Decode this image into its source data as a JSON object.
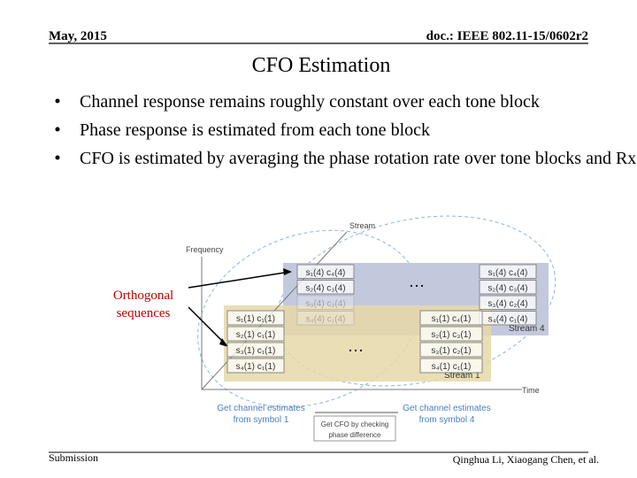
{
  "header": {
    "date": "May, 2015",
    "doc_id": "doc.: IEEE 802.11-15/0602r2"
  },
  "title": "CFO Estimation",
  "bullets": [
    "Channel response remains roughly constant over each tone block",
    "Phase response is estimated from each tone block",
    "CFO is estimated by averaging the phase rotation rate over tone blocks and Rx antennas"
  ],
  "figure": {
    "axis_frequency": "Frequency",
    "axis_stream": "Stream",
    "axis_time": "Time",
    "stream4_label": "Stream 4",
    "stream1_label": "Stream 1",
    "stream4_left": [
      "s₁(4) c₄(4)",
      "s₂(4) c₃(4)",
      "s₃(4) c₂(4)",
      "s₄(4) c₁(4)"
    ],
    "stream4_right": [
      "s₁(4) c₄(4)",
      "s₂(4) c₃(4)",
      "s₃(4) c₂(4)",
      "s₄(4) c₁(4)"
    ],
    "stream1_left": [
      "s₁(1) c₁(1)",
      "s₂(1) c₁(1)",
      "s₃(1) c₁(1)",
      "s₄(1) c₁(1)"
    ],
    "stream1_right": [
      "s₁(1) c₄(1)",
      "s₂(1) c₃(1)",
      "s₃(1) c₂(1)",
      "s₄(1) c₁(1)"
    ],
    "annotation": [
      "Orthogonal",
      "sequences"
    ],
    "caption_left": [
      "Get channel estimates",
      "from symbol 1"
    ],
    "caption_right": [
      "Get channel estimates",
      "from symbol 4"
    ],
    "caption_center": [
      "Get CFO by checking",
      "phase difference"
    ]
  },
  "footer": {
    "left": "Submission",
    "right": "Qinghua Li, Xiaogang Chen, et al."
  }
}
